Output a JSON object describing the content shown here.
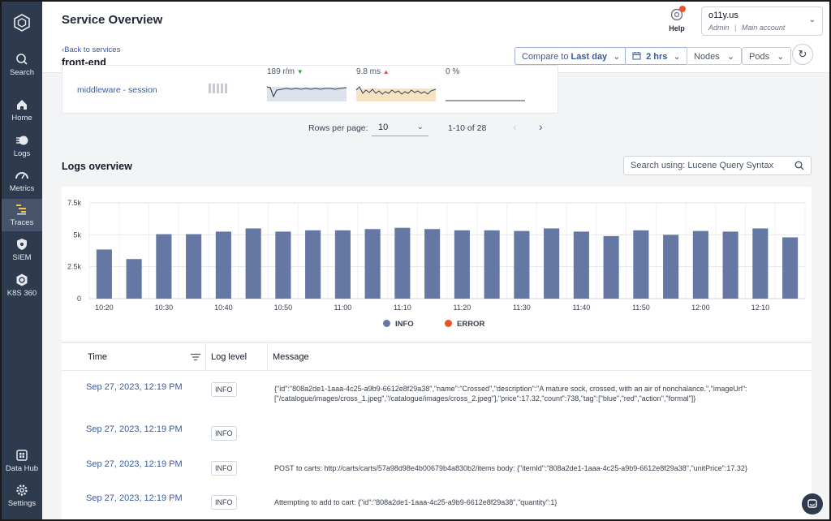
{
  "sidebar": {
    "items": [
      {
        "label": "Search",
        "icon": "search-icon"
      },
      {
        "label": "Home",
        "icon": "home-icon"
      },
      {
        "label": "Logs",
        "icon": "logs-icon"
      },
      {
        "label": "Metrics",
        "icon": "gauge-icon"
      },
      {
        "label": "Traces",
        "icon": "traces-icon",
        "active": true
      },
      {
        "label": "SIEM",
        "icon": "shield-icon"
      },
      {
        "label": "K8S 360",
        "icon": "kubernetes-icon"
      },
      {
        "label": "Data Hub",
        "icon": "data-hub-icon"
      },
      {
        "label": "Settings",
        "icon": "gear-icon"
      }
    ]
  },
  "header": {
    "title": "Service Overview",
    "back_link": "Back to services",
    "service": "front-end",
    "help_label": "Help",
    "account": {
      "org": "o11y.us",
      "role": "Admin",
      "account": "Main account"
    }
  },
  "toolbar": {
    "compare_prefix": "Compare to",
    "compare_value": "Last day",
    "time_range": "2 hrs",
    "nodes_label": "Nodes",
    "pods_label": "Pods"
  },
  "service_row": {
    "name": "middleware - session",
    "throughput": "189 r/m",
    "latency": "9.8 ms",
    "error_rate": "0 %"
  },
  "pagination": {
    "rows_label": "Rows per page:",
    "rows_value": "10",
    "range": "1-10 of 28"
  },
  "logs": {
    "title": "Logs overview",
    "search_placeholder": "Search using: Lucene Query Syntax"
  },
  "chart_data": {
    "type": "bar",
    "y_ticks": [
      "7.5k",
      "5k",
      "2.5k",
      "0"
    ],
    "ylim": [
      0,
      7500
    ],
    "x_tick_labels": [
      "10:20",
      "10:30",
      "10:40",
      "10:50",
      "11:00",
      "11:10",
      "11:20",
      "11:30",
      "11:40",
      "11:50",
      "12:00",
      "12:10"
    ],
    "series": [
      {
        "name": "INFO",
        "color": "#6478a3",
        "values": [
          3850,
          3100,
          5050,
          5050,
          5250,
          5500,
          5250,
          5350,
          5350,
          5450,
          5550,
          5450,
          5350,
          5350,
          5300,
          5500,
          5250,
          4900,
          5350,
          5000,
          5300,
          5250,
          5500,
          4800
        ]
      },
      {
        "name": "ERROR",
        "color": "#e4572e",
        "values": [
          0,
          0,
          0,
          0,
          0,
          0,
          0,
          0,
          0,
          0,
          0,
          0,
          0,
          0,
          0,
          0,
          0,
          0,
          0,
          0,
          0,
          0,
          0,
          0
        ]
      }
    ],
    "grid": true,
    "legend": "bottom"
  },
  "table": {
    "headers": [
      "Time",
      "Log level",
      "Message"
    ],
    "rows": [
      {
        "time": "Sep 27, 2023, 12:19 PM",
        "level": "INFO",
        "message": "{\"id\":\"808a2de1-1aaa-4c25-a9b9-6612e8f29a38\",\"name\":\"Crossed\",\"description\":\"A mature sock, crossed, with an air of nonchalance.\",\"imageUrl\":[\"/catalogue/images/cross_1.jpeg\",\"/catalogue/images/cross_2.jpeg\"],\"price\":17.32,\"count\":738,\"tag\":[\"blue\",\"red\",\"action\",\"formal\"]}"
      },
      {
        "time": "Sep 27, 2023, 12:19 PM",
        "level": "INFO",
        "message": ""
      },
      {
        "time": "Sep 27, 2023, 12:19 PM",
        "level": "INFO",
        "message": "POST to carts: http://carts/carts/57a98d98e4b00679b4a830b2/items body: {\"itemId\":\"808a2de1-1aaa-4c25-a9b9-6612e8f29a38\",\"unitPrice\":17.32}"
      },
      {
        "time": "Sep 27, 2023, 12:19 PM",
        "level": "INFO",
        "message": "Attempting to add to cart: {\"id\":\"808a2de1-1aaa-4c25-a9b9-6612e8f29a38\",\"quantity\":1}"
      }
    ]
  }
}
